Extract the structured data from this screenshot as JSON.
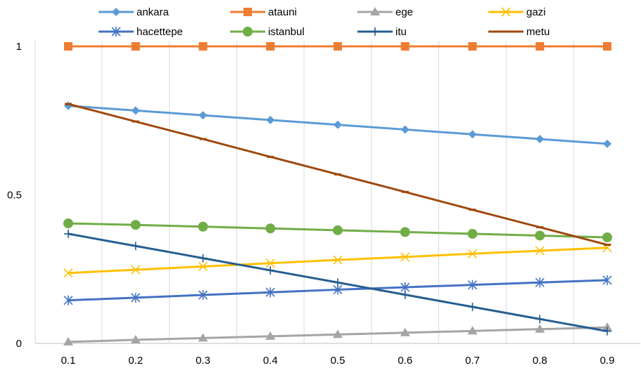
{
  "chart_data": {
    "type": "line",
    "title": "",
    "xlabel": "",
    "ylabel": "",
    "x": [
      0.1,
      0.2,
      0.3,
      0.4,
      0.5,
      0.6,
      0.7,
      0.8,
      0.9
    ],
    "x_tick_labels": [
      "0.1",
      "0.2",
      "0.3",
      "0.4",
      "0.5",
      "0.6",
      "0.7",
      "0.8",
      "0.9"
    ],
    "y_ticks": [
      0,
      0.5,
      1
    ],
    "y_tick_labels": [
      "0",
      "0.5",
      "1"
    ],
    "ylim": [
      0,
      1
    ],
    "grid": "vertical",
    "legend_position": "top",
    "series": [
      {
        "name": "ankara",
        "color": "#5B9BD5",
        "marker": "diamond",
        "values": [
          0.8,
          0.784,
          0.768,
          0.752,
          0.736,
          0.72,
          0.704,
          0.688,
          0.672
        ]
      },
      {
        "name": "atauni",
        "color": "#ED7D31",
        "marker": "square",
        "values": [
          1,
          1,
          1,
          1,
          1,
          1,
          1,
          1,
          1
        ]
      },
      {
        "name": "ege",
        "color": "#A5A5A5",
        "marker": "triangle",
        "values": [
          0.005,
          0.012,
          0.018,
          0.024,
          0.03,
          0.036,
          0.042,
          0.048,
          0.054
        ]
      },
      {
        "name": "gazi",
        "color": "#FFC000",
        "marker": "x",
        "values": [
          0.237,
          0.248,
          0.259,
          0.27,
          0.281,
          0.291,
          0.302,
          0.312,
          0.322
        ]
      },
      {
        "name": "hacettepe",
        "color": "#4472C4",
        "marker": "asterisk",
        "values": [
          0.145,
          0.154,
          0.163,
          0.172,
          0.181,
          0.189,
          0.197,
          0.205,
          0.213
        ]
      },
      {
        "name": "istanbul",
        "color": "#70AD47",
        "marker": "circle",
        "values": [
          0.404,
          0.399,
          0.393,
          0.387,
          0.381,
          0.375,
          0.369,
          0.363,
          0.357
        ]
      },
      {
        "name": "itu",
        "color": "#255E91",
        "marker": "plus",
        "values": [
          0.369,
          0.328,
          0.287,
          0.246,
          0.205,
          0.164,
          0.123,
          0.082,
          0.041
        ]
      },
      {
        "name": "metu",
        "color": "#9E480E",
        "marker": "dash",
        "values": [
          0.806,
          0.747,
          0.688,
          0.628,
          0.569,
          0.51,
          0.45,
          0.391,
          0.332
        ]
      }
    ]
  }
}
